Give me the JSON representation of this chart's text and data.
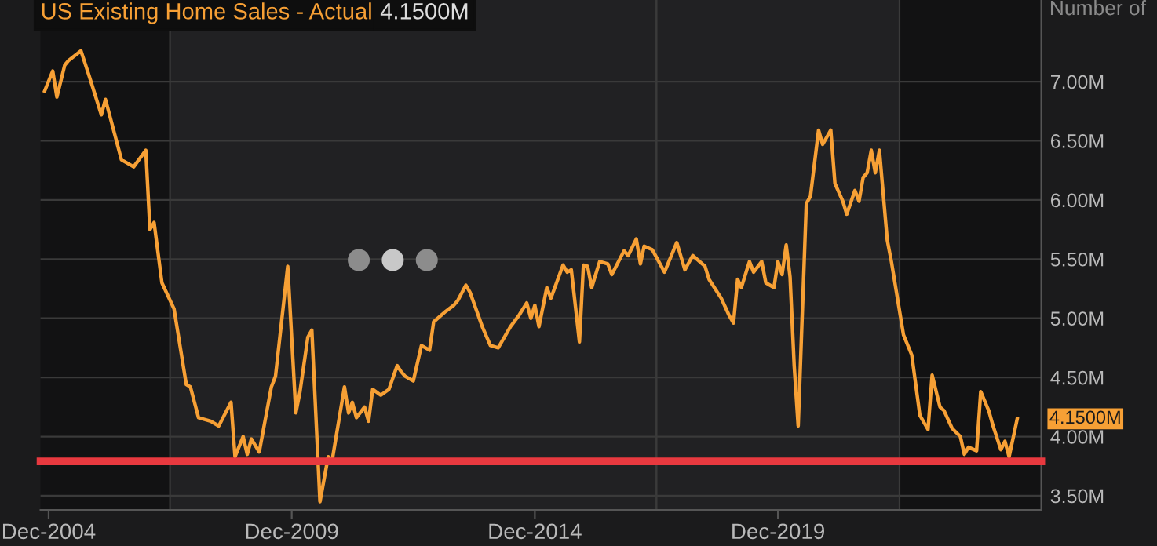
{
  "chart_data": {
    "type": "line",
    "title": "US Existing Home Sales - Actual",
    "subtitle": "4.1500M",
    "ylabel": "Number of",
    "x": [
      "2004-11",
      "2005-01",
      "2005-02",
      "2005-04",
      "2005-05",
      "2005-08",
      "2005-10",
      "2006-01",
      "2006-02",
      "2006-06",
      "2006-09",
      "2006-12",
      "2007-01",
      "2007-02",
      "2007-04",
      "2007-07",
      "2007-10",
      "2007-11",
      "2008-01",
      "2008-04",
      "2008-06",
      "2008-09",
      "2008-10",
      "2008-12",
      "2009-01",
      "2009-02",
      "2009-04",
      "2009-07",
      "2009-08",
      "2009-11",
      "2010-01",
      "2010-02",
      "2010-04",
      "2010-05",
      "2010-07",
      "2010-09",
      "2010-10",
      "2011-01",
      "2011-02",
      "2011-03",
      "2011-04",
      "2011-06",
      "2011-07",
      "2011-08",
      "2011-10",
      "2011-12",
      "2012-02",
      "2012-03",
      "2012-04",
      "2012-06",
      "2012-08",
      "2012-10",
      "2012-11",
      "2013-02",
      "2013-04",
      "2013-05",
      "2013-07",
      "2013-08",
      "2013-11",
      "2014-01",
      "2014-03",
      "2014-06",
      "2014-08",
      "2014-10",
      "2014-11",
      "2014-12",
      "2015-01",
      "2015-03",
      "2015-04",
      "2015-07",
      "2015-08",
      "2015-09",
      "2015-11",
      "2015-12",
      "2016-01",
      "2016-02",
      "2016-04",
      "2016-06",
      "2016-07",
      "2016-10",
      "2016-11",
      "2017-01",
      "2017-02",
      "2017-03",
      "2017-05",
      "2017-08",
      "2017-11",
      "2018-01",
      "2018-03",
      "2018-06",
      "2018-07",
      "2018-10",
      "2018-12",
      "2019-01",
      "2019-02",
      "2019-03",
      "2019-05",
      "2019-06",
      "2019-08",
      "2019-09",
      "2019-11",
      "2019-12",
      "2020-01",
      "2020-02",
      "2020-03",
      "2020-04",
      "2020-05",
      "2020-07",
      "2020-08",
      "2020-10",
      "2020-11",
      "2021-01",
      "2021-02",
      "2021-04",
      "2021-05",
      "2021-07",
      "2021-08",
      "2021-09",
      "2021-10",
      "2021-11",
      "2021-12",
      "2022-01",
      "2022-03",
      "2022-04",
      "2022-07",
      "2022-09",
      "2022-11",
      "2023-01",
      "2023-02",
      "2023-04",
      "2023-05",
      "2023-07",
      "2023-09",
      "2023-10",
      "2023-11",
      "2024-01",
      "2024-02",
      "2024-04",
      "2024-05",
      "2024-07",
      "2024-08",
      "2024-09",
      "2024-11"
    ],
    "series": [
      {
        "color": "#f7a035",
        "values": [
          6.92,
          7.09,
          6.87,
          7.14,
          7.18,
          7.26,
          7.05,
          6.72,
          6.85,
          6.34,
          6.28,
          6.42,
          5.75,
          5.81,
          5.3,
          5.08,
          4.44,
          4.42,
          4.16,
          4.13,
          4.09,
          4.29,
          3.83,
          4.0,
          3.85,
          3.98,
          3.87,
          4.42,
          4.51,
          5.44,
          4.2,
          4.38,
          4.84,
          4.9,
          3.45,
          3.83,
          3.8,
          4.42,
          4.2,
          4.29,
          4.16,
          4.25,
          4.13,
          4.4,
          4.35,
          4.4,
          4.6,
          4.55,
          4.51,
          4.47,
          4.77,
          4.73,
          4.97,
          5.06,
          5.11,
          5.15,
          5.28,
          5.22,
          4.93,
          4.77,
          4.75,
          4.93,
          5.02,
          5.13,
          5.0,
          5.11,
          4.93,
          5.26,
          5.17,
          5.45,
          5.39,
          5.41,
          4.8,
          5.45,
          5.44,
          5.26,
          5.48,
          5.46,
          5.37,
          5.57,
          5.53,
          5.67,
          5.46,
          5.61,
          5.58,
          5.39,
          5.64,
          5.41,
          5.53,
          5.44,
          5.33,
          5.17,
          5.02,
          4.96,
          5.33,
          5.26,
          5.48,
          5.39,
          5.48,
          5.3,
          5.26,
          5.48,
          5.37,
          5.62,
          5.35,
          4.6,
          4.09,
          5.97,
          6.03,
          6.59,
          6.47,
          6.59,
          6.14,
          5.99,
          5.88,
          6.08,
          5.99,
          6.19,
          6.23,
          6.42,
          6.23,
          6.42,
          5.66,
          5.48,
          4.86,
          4.69,
          4.18,
          4.06,
          4.52,
          4.25,
          4.22,
          4.07,
          4.0,
          3.85,
          3.91,
          3.88,
          4.38,
          4.22,
          4.1,
          3.89,
          3.96,
          3.83,
          4.15
        ]
      }
    ],
    "xlim": [
      "2004-10",
      "2025-05"
    ],
    "xticks": [
      {
        "value": "2004-12",
        "label": "Dec-2004"
      },
      {
        "value": "2009-12",
        "label": "Dec-2009"
      },
      {
        "value": "2014-12",
        "label": "Dec-2014"
      },
      {
        "value": "2019-12",
        "label": "Dec-2019"
      }
    ],
    "ylim": [
      3.38,
      7.69
    ],
    "yticks": [
      {
        "value": 3.5,
        "label": "3.50M"
      },
      {
        "value": 4.0,
        "label": "4.00M"
      },
      {
        "value": 4.5,
        "label": "4.50M"
      },
      {
        "value": 5.0,
        "label": "5.00M"
      },
      {
        "value": 5.5,
        "label": "5.50M"
      },
      {
        "value": 6.0,
        "label": "6.00M"
      },
      {
        "value": 6.5,
        "label": "6.50M"
      },
      {
        "value": 7.0,
        "label": "7.00M"
      }
    ],
    "grid": "y",
    "ref_lines": [
      {
        "axis": "y",
        "value": 3.79,
        "color": "#e8393f"
      }
    ],
    "bands": [
      {
        "axis": "x",
        "from": "2007-06",
        "to": "2017-06",
        "color": "#212123"
      },
      {
        "axis": "x",
        "from": "2017-06",
        "to": "2022-06",
        "color": "#212123"
      }
    ],
    "annotations": [
      {
        "text": "4.1500M",
        "x": "2024-11",
        "y": 4.15
      }
    ],
    "marker": "none",
    "line_style": "solid"
  }
}
